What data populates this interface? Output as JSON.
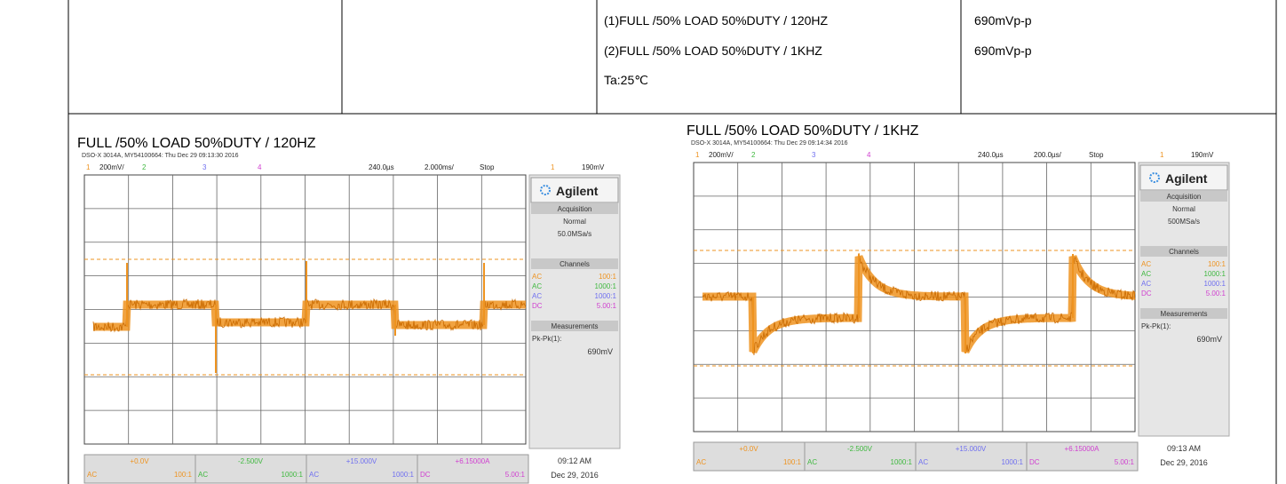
{
  "table": {
    "conditions": [
      "(1)FULL /50% LOAD 50%DUTY / 120HZ",
      "(2)FULL /50% LOAD 50%DUTY / 1KHZ",
      "Ta:25℃"
    ],
    "results": [
      "690mVp-p",
      "690mVp-p"
    ]
  },
  "scopes": [
    {
      "title": "FULL /50% LOAD 50%DUTY / 120HZ",
      "info": "DSO-X 3014A, MY54100664: Thu Dec 29 09:13:30 2016",
      "topbar": [
        "1",
        "200mV/",
        "2",
        "3",
        "4",
        "240.0µs",
        "2.000ms/",
        "Stop",
        "1",
        "190mV"
      ],
      "brand": "Agilent",
      "acquisition": [
        "Acquisition",
        "Normal",
        "50.0MSa/s"
      ],
      "channels": {
        "header": "Channels",
        "rows": [
          [
            "AC",
            "100:1"
          ],
          [
            "AC",
            "1000:1"
          ],
          [
            "AC",
            "1000:1"
          ],
          [
            "DC",
            "5.00:1"
          ]
        ]
      },
      "measurements": [
        "Measurements",
        "Pk-Pk(1):",
        "690mV"
      ],
      "bottom": [
        [
          "+0.0V",
          "AC",
          "100:1"
        ],
        [
          "-2.500V",
          "AC",
          "1000:1"
        ],
        [
          "+15.000V",
          "AC",
          "1000:1"
        ],
        [
          "+6.15000A",
          "DC",
          "5.00:1"
        ]
      ],
      "time": "09:12 AM",
      "date": "Dec 29, 2016"
    },
    {
      "title": "FULL /50% LOAD 50%DUTY / 1KHZ",
      "info": "DSO-X 3014A, MY54100664: Thu Dec 29 09:14:34 2016",
      "topbar": [
        "1",
        "200mV/",
        "2",
        "3",
        "4",
        "240.0µs",
        "200.0µs/",
        "Stop",
        "1",
        "190mV"
      ],
      "brand": "Agilent",
      "acquisition": [
        "Acquisition",
        "Normal",
        "500MSa/s"
      ],
      "channels": {
        "header": "Channels",
        "rows": [
          [
            "AC",
            "100:1"
          ],
          [
            "AC",
            "1000:1"
          ],
          [
            "AC",
            "1000:1"
          ],
          [
            "DC",
            "5.00:1"
          ]
        ]
      },
      "measurements": [
        "Measurements",
        "Pk-Pk(1):",
        "690mV"
      ],
      "bottom": [
        [
          "+0.0V",
          "AC",
          "100:1"
        ],
        [
          "-2.500V",
          "AC",
          "1000:1"
        ],
        [
          "+15.000V",
          "AC",
          "1000:1"
        ],
        [
          "+6.15000A",
          "DC",
          "5.00:1"
        ]
      ],
      "time": "09:13 AM",
      "date": "Dec 29, 2016"
    }
  ]
}
